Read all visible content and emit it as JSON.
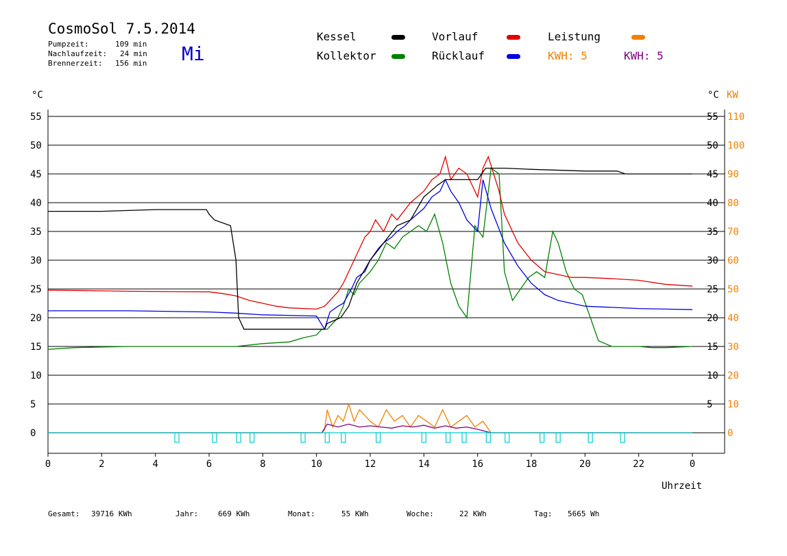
{
  "header": {
    "title": "CosmoSol 7.5.2014",
    "day": "Mi",
    "stats": [
      {
        "label": "Pumpzeit:",
        "value": "109 min"
      },
      {
        "label": "Nachlaufzeit:",
        "value": "24 min"
      },
      {
        "label": "Brennerzeit:",
        "value": "156 min"
      }
    ]
  },
  "legend": {
    "items": [
      {
        "label": "Kessel",
        "color": "#000000"
      },
      {
        "label": "Vorlauf",
        "color": "#e00000"
      },
      {
        "label": "Leistung",
        "color": "#f08000"
      },
      {
        "label": "Kollektor",
        "color": "#008000"
      },
      {
        "label": "Rücklauf",
        "color": "#0000e0"
      }
    ],
    "kwh": [
      {
        "label": "KWH: 5",
        "color": "#f08000"
      },
      {
        "label": "KWH: 5",
        "color": "#800080"
      }
    ]
  },
  "footer": [
    {
      "label": "Gesamt:",
      "value": "39716 KWh"
    },
    {
      "label": "Jahr:",
      "value": "669 KWh"
    },
    {
      "label": "Monat:",
      "value": "55 KWh"
    },
    {
      "label": "Woche:",
      "value": "22 KWh"
    },
    {
      "label": "Tag:",
      "value": "5665 Wh"
    }
  ],
  "chart_data": {
    "type": "line",
    "xlabel": "Uhrzeit",
    "ylabel_left": "°C",
    "ylabel_right_1": "°C",
    "ylabel_right_2": "KW",
    "xlim": [
      0,
      24
    ],
    "ylim": [
      -3.5,
      58
    ],
    "xticks": [
      "0",
      "2",
      "4",
      "6",
      "8",
      "10",
      "12",
      "14",
      "16",
      "18",
      "20",
      "22",
      "0"
    ],
    "yticks_left": [
      0,
      5,
      10,
      15,
      20,
      25,
      30,
      35,
      40,
      45,
      50,
      55
    ],
    "yticks_right": [
      5,
      10,
      15,
      20,
      25,
      30,
      35,
      40,
      45,
      50,
      55
    ],
    "yticks_kw": [
      0,
      10,
      20,
      30,
      40,
      50,
      60,
      70,
      80,
      90,
      100,
      110
    ],
    "colors": {
      "grid": "#000000",
      "kw_axis": "#f08000",
      "pump": "#00cccc"
    },
    "series": [
      {
        "name": "Kessel",
        "color": "#000000",
        "x": [
          0,
          2,
          4,
          5.9,
          6,
          6.2,
          6.8,
          7,
          7.1,
          7.3,
          8,
          10,
          10.3,
          10.4,
          10.9,
          11.2,
          11.5,
          12,
          12.5,
          13,
          13.5,
          14,
          14.5,
          14.8,
          15,
          15.5,
          15.9,
          16,
          16.3,
          17,
          18,
          20,
          21.2,
          21.5,
          24
        ],
        "y": [
          38.5,
          38.5,
          38.8,
          38.8,
          38,
          37,
          36,
          30,
          20,
          18,
          18,
          18,
          18,
          19,
          20,
          22,
          26,
          30,
          33,
          36,
          37,
          41,
          43,
          44,
          44,
          44,
          44,
          44,
          46,
          46,
          45.8,
          45.5,
          45.5,
          45,
          45
        ]
      },
      {
        "name": "Vorlauf",
        "color": "#e00000",
        "x": [
          0,
          3,
          6,
          6.5,
          7,
          7.5,
          8,
          8.5,
          9,
          10,
          10.3,
          10.5,
          10.8,
          11,
          11.3,
          11.5,
          11.8,
          12,
          12.2,
          12.5,
          12.8,
          13,
          13.5,
          14,
          14.3,
          14.6,
          14.8,
          15,
          15.3,
          15.6,
          16,
          16.2,
          16.4,
          16.8,
          17,
          17.5,
          18,
          18.5,
          19,
          19.5,
          20,
          21,
          22,
          23,
          24
        ],
        "y": [
          24.8,
          24.6,
          24.5,
          24.2,
          23.8,
          23,
          22.5,
          22,
          21.7,
          21.5,
          22,
          23,
          24.5,
          26,
          29,
          31,
          34,
          35,
          37,
          35,
          38,
          37,
          40,
          42,
          44,
          45,
          48,
          44,
          46,
          45,
          41,
          46,
          48,
          42,
          38,
          33,
          30,
          28,
          27.5,
          27,
          27,
          26.8,
          26.5,
          25.8,
          25.5
        ]
      },
      {
        "name": "Rücklauf",
        "color": "#0000e0",
        "x": [
          0,
          3,
          6,
          7,
          8,
          9,
          10,
          10.3,
          10.5,
          10.8,
          11,
          11.3,
          11.5,
          11.8,
          12,
          12.3,
          12.5,
          12.8,
          13,
          13.3,
          13.5,
          14,
          14.3,
          14.6,
          14.8,
          15,
          15.3,
          15.6,
          16,
          16.2,
          16.5,
          17,
          17.5,
          18,
          18.5,
          19,
          20,
          21,
          22,
          23,
          24
        ],
        "y": [
          21.2,
          21.2,
          21,
          20.8,
          20.5,
          20.4,
          20.3,
          18,
          21,
          22,
          22.5,
          25,
          27,
          28,
          30,
          32,
          33,
          34,
          35,
          36,
          37,
          39,
          41,
          42,
          44,
          42,
          40,
          37,
          35,
          44,
          39,
          33,
          29,
          26,
          24,
          23,
          22,
          21.8,
          21.6,
          21.5,
          21.4
        ]
      },
      {
        "name": "Kollektor",
        "color": "#008000",
        "x": [
          0,
          1,
          2,
          3,
          4,
          5,
          6,
          7,
          8,
          9,
          9.5,
          10,
          10.2,
          10.4,
          10.6,
          10.8,
          11,
          11.2,
          11.4,
          11.6,
          11.8,
          12,
          12.3,
          12.6,
          12.9,
          13.2,
          13.5,
          13.8,
          14.1,
          14.4,
          14.7,
          15,
          15.3,
          15.6,
          15.9,
          16.2,
          16.5,
          16.8,
          17,
          17.3,
          17.6,
          17.9,
          18.2,
          18.5,
          18.8,
          19,
          19.3,
          19.6,
          19.9,
          20.2,
          20.5,
          21,
          21.5,
          22,
          22.5,
          23,
          23.5,
          24
        ],
        "y": [
          14.5,
          14.8,
          14.9,
          15,
          15,
          15,
          15,
          15,
          15.5,
          15.8,
          16.5,
          17,
          18,
          18,
          19,
          20,
          22,
          25,
          24,
          26,
          27,
          28,
          30,
          33,
          32,
          34,
          35,
          36,
          35,
          38,
          33,
          26,
          22,
          20,
          36,
          34,
          46,
          45,
          28,
          23,
          25,
          27,
          28,
          27,
          35,
          33,
          28,
          25,
          24,
          20,
          16,
          15,
          15,
          15,
          14.8,
          14.8,
          14.9,
          15
        ]
      },
      {
        "name": "Leistung",
        "color": "#f08000",
        "x": [
          0,
          10.2,
          10.3,
          10.4,
          10.6,
          10.8,
          11,
          11.2,
          11.4,
          11.6,
          11.8,
          12,
          12.3,
          12.6,
          12.9,
          13.2,
          13.5,
          13.8,
          14.1,
          14.4,
          14.7,
          15,
          15.3,
          15.6,
          15.9,
          16.2,
          16.5,
          24
        ],
        "y": [
          0,
          0,
          0.5,
          4,
          1,
          3,
          2,
          5,
          2,
          4,
          3,
          2,
          1,
          4,
          2,
          3,
          1,
          3,
          2,
          1,
          4,
          1,
          2,
          3,
          1,
          2,
          0,
          0
        ]
      },
      {
        "name": "Leistung KWH",
        "color": "#800080",
        "x": [
          0,
          10.2,
          10.4,
          10.8,
          11.2,
          11.6,
          12,
          12.4,
          12.8,
          13.2,
          13.6,
          14,
          14.4,
          14.8,
          15.2,
          15.6,
          16,
          16.5,
          24
        ],
        "y": [
          0,
          0,
          1.5,
          1,
          1.5,
          1,
          1.2,
          1,
          0.8,
          1.2,
          1,
          1.3,
          0.8,
          1.2,
          0.8,
          1,
          0.6,
          0,
          0
        ]
      },
      {
        "name": "Pumpe",
        "color": "#00cccc",
        "x": [
          0,
          24
        ],
        "y": [
          0,
          0
        ],
        "pulses": [
          4.8,
          6.2,
          7.1,
          7.6,
          9.5,
          10.4,
          11,
          12.3,
          14,
          14.9,
          15.5,
          16.4,
          17.1,
          18.4,
          19,
          20.2,
          21.4
        ]
      }
    ]
  }
}
